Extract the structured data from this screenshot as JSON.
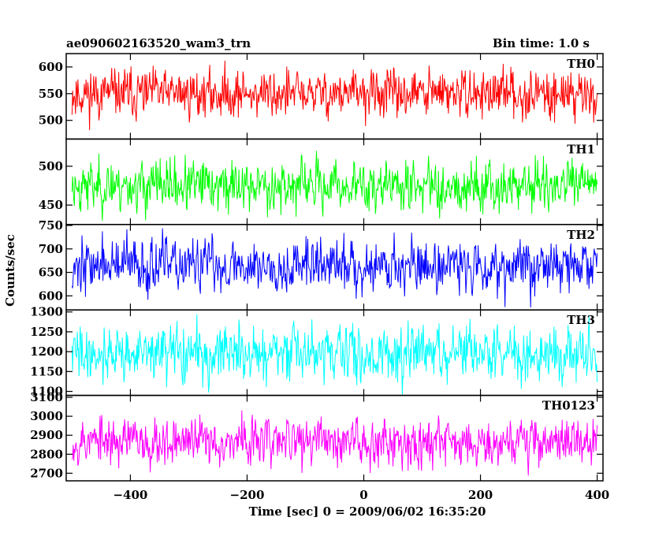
{
  "header": {
    "left_title": "ae090602163520_wam3_trn",
    "right_title": "Bin time: 1.0 s"
  },
  "chart_data": {
    "type": "line",
    "xlabel": "Time [sec] 0 = 2009/06/02 16:35:20",
    "ylabel": "Counts/sec",
    "xlim": [
      -510,
      410
    ],
    "x_range": [
      -500,
      400
    ],
    "x_ticks": [
      -400,
      -200,
      0,
      200,
      400
    ],
    "bin_time_s": 1.0,
    "panels": [
      {
        "name": "TH0",
        "color": "#ff0000",
        "ylim": [
          465,
          625
        ],
        "ticks": [
          500,
          550,
          600
        ],
        "mean": 550,
        "spread": 22,
        "seed": 11
      },
      {
        "name": "TH1",
        "color": "#00ff00",
        "ylim": [
          425,
          535
        ],
        "ticks": [
          450,
          500
        ],
        "mean": 475,
        "spread": 16,
        "seed": 23
      },
      {
        "name": "TH2",
        "color": "#0000ff",
        "ylim": [
          570,
          752
        ],
        "ticks": [
          600,
          650,
          700,
          750
        ],
        "mean": 665,
        "spread": 28,
        "seed": 37
      },
      {
        "name": "TH3",
        "color": "#00ffff",
        "ylim": [
          1090,
          1305
        ],
        "ticks": [
          1100,
          1150,
          1200,
          1250,
          1300
        ],
        "mean": 1195,
        "spread": 34,
        "seed": 41
      },
      {
        "name": "TH0123",
        "color": "#ff00ff",
        "ylim": [
          2660,
          3110
        ],
        "ticks": [
          2700,
          2800,
          2900,
          3000,
          3100
        ],
        "mean": 2870,
        "spread": 62,
        "seed": 53
      }
    ]
  }
}
